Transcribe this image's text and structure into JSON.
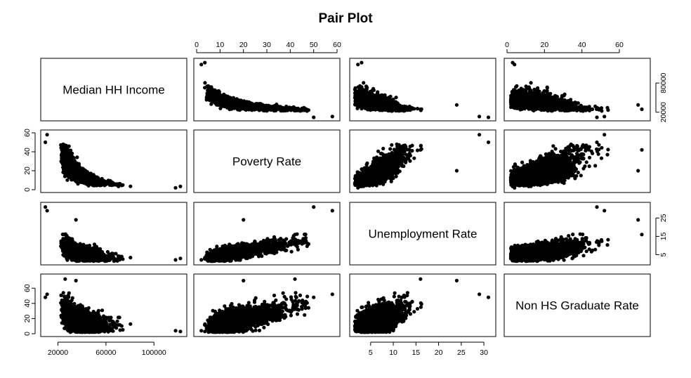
{
  "chart_data": {
    "type": "scatter",
    "kind": "pair-plot",
    "title": "Pair Plot",
    "point_color": "#000000",
    "variables": [
      {
        "name": "Median HH Income",
        "range": [
          8000,
          125000
        ],
        "ticks": [
          20000,
          60000,
          100000
        ],
        "right_ticks": [
          20000,
          80000
        ]
      },
      {
        "name": "Poverty Rate",
        "range": [
          0,
          60
        ],
        "ticks": [
          0,
          10,
          20,
          30,
          40,
          50,
          60
        ],
        "left_ticks": [
          0,
          20,
          40,
          60
        ]
      },
      {
        "name": "Unemployment Rate",
        "range": [
          1,
          32
        ],
        "ticks": [
          5,
          10,
          15,
          20,
          25,
          30
        ],
        "right_ticks": [
          5,
          15,
          25
        ]
      },
      {
        "name": "Non HS Graduate Rate",
        "range": [
          0,
          75
        ],
        "ticks": [
          0,
          20,
          40,
          60
        ],
        "left_ticks": [
          0,
          20,
          40,
          60
        ]
      }
    ],
    "tick_axes": {
      "top": [
        1,
        3
      ],
      "bottom": [
        0,
        2
      ],
      "left": [
        1,
        3
      ],
      "right": [
        0,
        2
      ]
    },
    "notes": "Dense scatter of several thousand observations; points summarized as reported cluster shapes.",
    "relationships": [
      {
        "x": "Median HH Income",
        "y": "Poverty Rate",
        "trend": "strong negative, convex decay"
      },
      {
        "x": "Median HH Income",
        "y": "Unemployment Rate",
        "trend": "negative, convex decay"
      },
      {
        "x": "Median HH Income",
        "y": "Non HS Graduate Rate",
        "trend": "negative"
      },
      {
        "x": "Poverty Rate",
        "y": "Unemployment Rate",
        "trend": "positive"
      },
      {
        "x": "Poverty Rate",
        "y": "Non HS Graduate Rate",
        "trend": "positive"
      },
      {
        "x": "Unemployment Rate",
        "y": "Non HS Graduate Rate",
        "trend": "positive"
      }
    ]
  }
}
